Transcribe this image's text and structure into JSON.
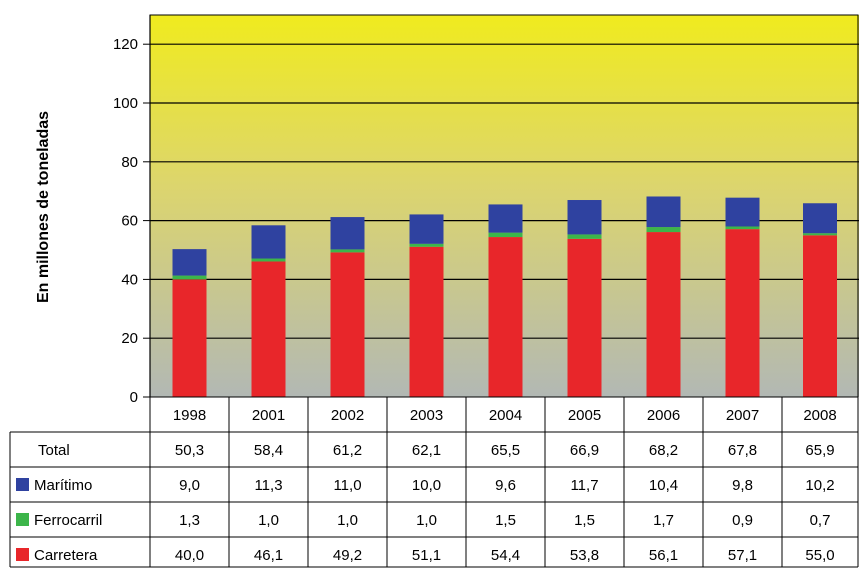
{
  "chart_data": {
    "type": "bar",
    "stacked": true,
    "ylabel": "En millones de toneladas",
    "ylim": [
      0,
      130
    ],
    "yticks": [
      0,
      20,
      40,
      60,
      80,
      100,
      120
    ],
    "grid": true,
    "categories": [
      "1998",
      "2001",
      "2002",
      "2003",
      "2004",
      "2005",
      "2006",
      "2007",
      "2008"
    ],
    "total": {
      "label": "Total",
      "values": [
        "50,3",
        "58,4",
        "61,2",
        "62,1",
        "65,5",
        "66,9",
        "68,2",
        "67,8",
        "65,9"
      ]
    },
    "series": [
      {
        "name": "Carretera",
        "color": "#e8262a",
        "values": [
          40.0,
          46.1,
          49.2,
          51.1,
          54.4,
          53.8,
          56.1,
          57.1,
          55.0
        ],
        "labels": [
          "40,0",
          "46,1",
          "49,2",
          "51,1",
          "54,4",
          "53,8",
          "56,1",
          "57,1",
          "55,0"
        ]
      },
      {
        "name": "Ferrocarril",
        "color": "#3cb54a",
        "values": [
          1.3,
          1.0,
          1.0,
          1.0,
          1.5,
          1.5,
          1.7,
          0.9,
          0.7
        ],
        "labels": [
          "1,3",
          "1,0",
          "1,0",
          "1,0",
          "1,5",
          "1,5",
          "1,7",
          "0,9",
          "0,7"
        ]
      },
      {
        "name": "Marítimo",
        "color": "#2f42a0",
        "values": [
          9.0,
          11.3,
          11.0,
          10.0,
          9.6,
          11.7,
          10.4,
          9.8,
          10.2
        ],
        "labels": [
          "9,0",
          "11,3",
          "11,0",
          "10,0",
          "9,6",
          "11,7",
          "10,4",
          "9,8",
          "10,2"
        ]
      }
    ],
    "table_row_order": [
      "Total",
      "Marítimo",
      "Ferrocarril",
      "Carretera"
    ]
  }
}
